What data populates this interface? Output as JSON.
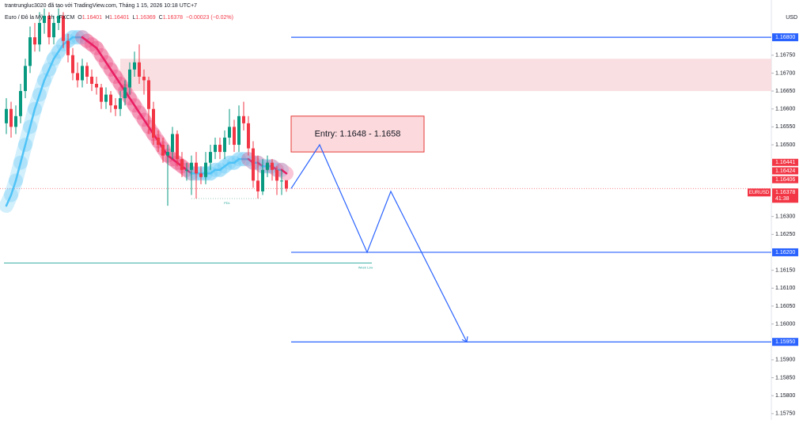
{
  "header": {
    "credit": "trantrungluc3020 đã tạo với TradingView.com, Tháng 1 15, 2026 10:18 UTC+7",
    "symbol": "Euro / Đô la Mỹ · 1h · FXCM",
    "o_label": "O",
    "o": "1.16401",
    "h_label": "H",
    "h": "1.16401",
    "l_label": "L",
    "l": "1.16369",
    "c_label": "C",
    "c": "1.16378",
    "change": "−0.00023 (−0.02%)"
  },
  "chart_data": {
    "type": "candlestick",
    "currency": "USD",
    "up_color": "#089981",
    "down_color": "#f23645",
    "ylim": [
      1.15732,
      1.16904
    ],
    "xlim": [
      -1,
      161
    ],
    "yticks": [
      {
        "value": 1.1675,
        "label": "1.16750"
      },
      {
        "value": 1.167,
        "label": "1.16700"
      },
      {
        "value": 1.1665,
        "label": "1.16650"
      },
      {
        "value": 1.166,
        "label": "1.16600"
      },
      {
        "value": 1.1655,
        "label": "1.16550"
      },
      {
        "value": 1.165,
        "label": "1.16500"
      },
      {
        "value": 1.163,
        "label": "1.16300"
      },
      {
        "value": 1.1625,
        "label": "1.16250"
      },
      {
        "value": 1.1615,
        "label": "1.16150"
      },
      {
        "value": 1.161,
        "label": "1.16100"
      },
      {
        "value": 1.1605,
        "label": "1.16050"
      },
      {
        "value": 1.16,
        "label": "1.16000"
      },
      {
        "value": 1.159,
        "label": "1.15900"
      },
      {
        "value": 1.1585,
        "label": "1.15850"
      },
      {
        "value": 1.158,
        "label": "1.15800"
      },
      {
        "value": 1.1575,
        "label": "1.15750"
      }
    ],
    "candles": {
      "open": [
        1.1656,
        1.166,
        1.1655,
        1.1658,
        1.1665,
        1.1672,
        1.168,
        1.1678,
        1.1684,
        1.1686,
        1.168,
        1.1684,
        1.1686,
        1.1679,
        1.1675,
        1.167,
        1.1668,
        1.1672,
        1.1669,
        1.1667,
        1.1666,
        1.1662,
        1.1664,
        1.1661,
        1.166,
        1.1663,
        1.1666,
        1.1671,
        1.1673,
        1.1669,
        1.1668,
        1.166,
        1.1652,
        1.165,
        1.1647,
        1.1648,
        1.1653,
        1.1646,
        1.1643,
        1.1643,
        1.1645,
        1.1642,
        1.1641,
        1.1645,
        1.1648,
        1.165,
        1.1648,
        1.1652,
        1.1655,
        1.165,
        1.1658,
        1.1656,
        1.1649,
        1.164,
        1.1637,
        1.1643,
        1.1645,
        1.1643,
        1.164,
        1.16401
      ],
      "high": [
        1.1663,
        1.1662,
        1.1661,
        1.1667,
        1.1674,
        1.1683,
        1.1684,
        1.1687,
        1.1688,
        1.1687,
        1.1686,
        1.1688,
        1.1687,
        1.1681,
        1.1677,
        1.1673,
        1.1674,
        1.1673,
        1.1671,
        1.1669,
        1.1667,
        1.1666,
        1.1665,
        1.1663,
        1.1665,
        1.1668,
        1.1673,
        1.1676,
        1.1678,
        1.1671,
        1.1669,
        1.1662,
        1.1654,
        1.1652,
        1.165,
        1.1655,
        1.1654,
        1.1648,
        1.1645,
        1.1647,
        1.1648,
        1.1644,
        1.1648,
        1.165,
        1.1652,
        1.1652,
        1.1654,
        1.166,
        1.1657,
        1.1661,
        1.1662,
        1.1658,
        1.1651,
        1.1647,
        1.1646,
        1.1647,
        1.1646,
        1.1644,
        1.1643,
        1.16401
      ],
      "low": [
        1.1653,
        1.1652,
        1.1653,
        1.1656,
        1.1663,
        1.167,
        1.1676,
        1.1676,
        1.1681,
        1.1678,
        1.1678,
        1.1682,
        1.1677,
        1.1673,
        1.1668,
        1.1666,
        1.1666,
        1.1667,
        1.1665,
        1.1664,
        1.166,
        1.166,
        1.1659,
        1.1658,
        1.1658,
        1.1661,
        1.1664,
        1.1669,
        1.1667,
        1.1664,
        1.1653,
        1.165,
        1.1648,
        1.1645,
        1.1633,
        1.1646,
        1.1644,
        1.1641,
        1.164,
        1.1636,
        1.1635,
        1.1639,
        1.1639,
        1.1643,
        1.1646,
        1.1646,
        1.1646,
        1.165,
        1.1648,
        1.1648,
        1.1654,
        1.1647,
        1.1638,
        1.1635,
        1.1636,
        1.1641,
        1.164,
        1.1636,
        1.1636,
        1.16369
      ],
      "close": [
        1.166,
        1.1655,
        1.1658,
        1.1665,
        1.1672,
        1.168,
        1.1678,
        1.1684,
        1.1686,
        1.168,
        1.1684,
        1.1686,
        1.1679,
        1.1675,
        1.167,
        1.1668,
        1.1672,
        1.1669,
        1.1667,
        1.1666,
        1.1662,
        1.1664,
        1.1661,
        1.166,
        1.1663,
        1.1666,
        1.1671,
        1.1673,
        1.1669,
        1.1668,
        1.166,
        1.1652,
        1.165,
        1.1647,
        1.1648,
        1.1653,
        1.1646,
        1.1643,
        1.1643,
        1.1645,
        1.1642,
        1.1641,
        1.1645,
        1.1648,
        1.165,
        1.1648,
        1.1652,
        1.1655,
        1.165,
        1.1658,
        1.1656,
        1.1649,
        1.164,
        1.1637,
        1.1643,
        1.1645,
        1.1643,
        1.164,
        1.164,
        1.16378
      ]
    },
    "band": {
      "rising_color": "#4fc3f7",
      "falling_color": "#e91e63",
      "values": [
        1.1633,
        1.1636,
        1.164,
        1.1645,
        1.165,
        1.1655,
        1.166,
        1.1664,
        1.1668,
        1.1671,
        1.1674,
        1.1676,
        1.1678,
        1.1679,
        1.168,
        1.168,
        1.168,
        1.1679,
        1.1678,
        1.1677,
        1.1675,
        1.1673,
        1.1671,
        1.1669,
        1.1667,
        1.1665,
        1.1663,
        1.1661,
        1.1659,
        1.1657,
        1.1655,
        1.1653,
        1.1651,
        1.1649,
        1.1647,
        1.1646,
        1.1645,
        1.1644,
        1.1643,
        1.1642,
        1.1642,
        1.1642,
        1.1642,
        1.1642,
        1.1643,
        1.1643,
        1.1644,
        1.1645,
        1.1645,
        1.1646,
        1.1646,
        1.1646,
        1.1645,
        1.1645,
        1.1644,
        1.1644,
        1.1644,
        1.1643,
        1.1643,
        1.1642
      ]
    },
    "zone": {
      "top": 1.1674,
      "bottom": 1.1665,
      "x_start": 24,
      "color": "#f8d7d9"
    },
    "entry": {
      "label": "Entry: 1.1648 - 1.1658",
      "top": 1.1658,
      "bottom": 1.1648,
      "x_start": 60,
      "x_end": 88
    },
    "levels": [
      {
        "value": 1.168,
        "label": "1.16800"
      },
      {
        "value": 1.162,
        "label": "1.16200"
      },
      {
        "value": 1.1595,
        "label": "1.15950"
      }
    ],
    "level_color": "#2962ff",
    "level_x_start": 60,
    "week_low": {
      "value": 1.1617,
      "label": "Week Low",
      "x_end": 77,
      "color": "#26a69a"
    },
    "pdl": {
      "value": 1.1635,
      "label": "PDL",
      "x_start": 39,
      "x_end": 54
    },
    "projection": {
      "x": [
        60,
        66,
        76,
        81,
        97
      ],
      "values": [
        1.16378,
        1.165,
        1.162,
        1.1637,
        1.1595
      ],
      "color": "#2962ff"
    },
    "price_tags": [
      {
        "value": 1.16441,
        "label": "1.16441"
      },
      {
        "value": 1.16424,
        "label": "1.16424"
      },
      {
        "value": 1.16406,
        "label": "1.16406"
      },
      {
        "value": 1.16378,
        "label": "1.16378"
      }
    ],
    "last": {
      "value": 1.16378,
      "symbol": "EURUSD",
      "label": "1.16378",
      "countdown": "41:38"
    }
  }
}
